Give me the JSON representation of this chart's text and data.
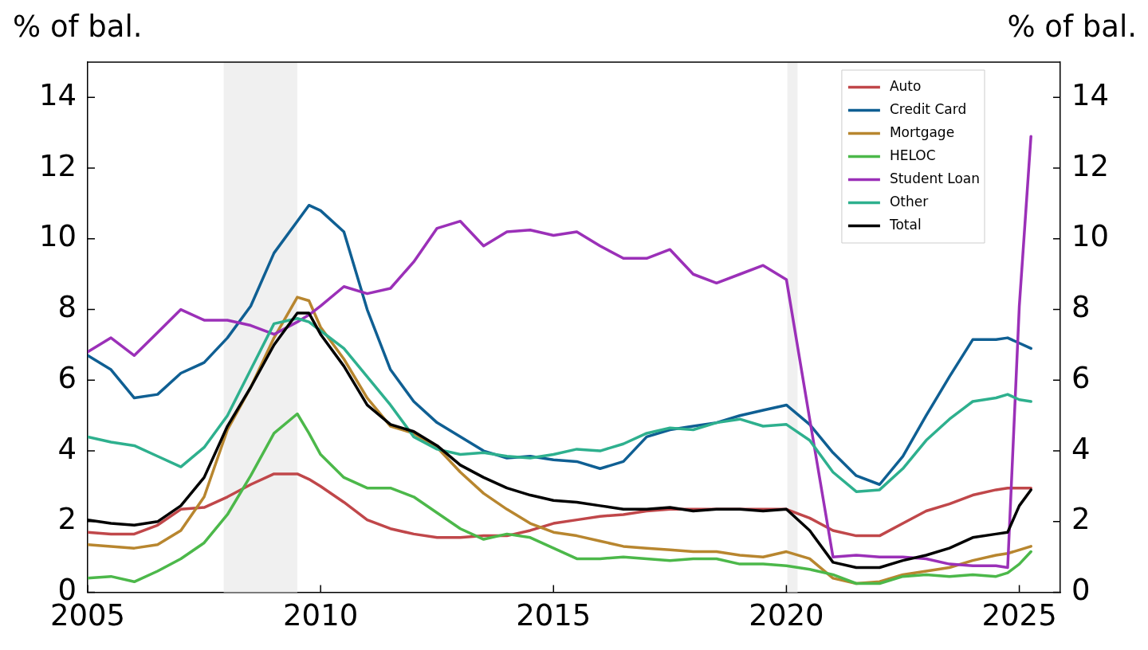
{
  "chart_data": {
    "type": "line",
    "ylabel": "% of bal.",
    "y2label": "% of bal.",
    "x": [
      2005,
      2005.5,
      2006,
      2006.5,
      2007,
      2007.5,
      2008,
      2008.5,
      2009,
      2009.5,
      2009.75,
      2010,
      2010.5,
      2011,
      2011.5,
      2012,
      2012.5,
      2013,
      2013.5,
      2014,
      2014.5,
      2015,
      2015.5,
      2016,
      2016.5,
      2017,
      2017.5,
      2018,
      2018.5,
      2019,
      2019.5,
      2020,
      2020.5,
      2021,
      2021.5,
      2022,
      2022.5,
      2023,
      2023.5,
      2024,
      2024.5,
      2024.75,
      2025,
      2025.25
    ],
    "series": [
      {
        "name": "Auto",
        "color": "#c0474a",
        "values": [
          1.7,
          1.65,
          1.65,
          1.9,
          2.35,
          2.4,
          2.7,
          3.05,
          3.35,
          3.35,
          3.2,
          3.0,
          2.55,
          2.05,
          1.8,
          1.65,
          1.55,
          1.55,
          1.6,
          1.6,
          1.75,
          1.95,
          2.05,
          2.15,
          2.2,
          2.3,
          2.35,
          2.35,
          2.35,
          2.35,
          2.35,
          2.35,
          2.1,
          1.75,
          1.6,
          1.6,
          1.95,
          2.3,
          2.5,
          2.75,
          2.9,
          2.95,
          2.95,
          2.95
        ]
      },
      {
        "name": "Credit Card",
        "color": "#0f5f93",
        "values": [
          6.7,
          6.3,
          5.5,
          5.6,
          6.2,
          6.5,
          7.2,
          8.1,
          9.6,
          10.5,
          10.95,
          10.8,
          10.2,
          8.0,
          6.3,
          5.4,
          4.8,
          4.4,
          4.0,
          3.8,
          3.85,
          3.75,
          3.7,
          3.5,
          3.7,
          4.4,
          4.6,
          4.7,
          4.8,
          5.0,
          5.15,
          5.3,
          4.75,
          3.95,
          3.3,
          3.05,
          3.85,
          5.0,
          6.1,
          7.15,
          7.15,
          7.2,
          7.05,
          6.9
        ]
      },
      {
        "name": "Mortgage",
        "color": "#b8862f",
        "values": [
          1.35,
          1.3,
          1.25,
          1.35,
          1.75,
          2.7,
          4.6,
          5.8,
          7.2,
          8.35,
          8.25,
          7.5,
          6.6,
          5.5,
          4.7,
          4.5,
          4.1,
          3.4,
          2.8,
          2.35,
          1.95,
          1.7,
          1.6,
          1.45,
          1.3,
          1.25,
          1.2,
          1.15,
          1.15,
          1.05,
          1.0,
          1.15,
          0.95,
          0.4,
          0.25,
          0.3,
          0.5,
          0.6,
          0.7,
          0.9,
          1.05,
          1.1,
          1.2,
          1.3
        ]
      },
      {
        "name": "HELOC",
        "color": "#4cb84a",
        "values": [
          0.4,
          0.45,
          0.3,
          0.6,
          0.95,
          1.4,
          2.2,
          3.3,
          4.5,
          5.05,
          4.5,
          3.9,
          3.25,
          2.95,
          2.95,
          2.7,
          2.25,
          1.8,
          1.5,
          1.65,
          1.55,
          1.25,
          0.95,
          0.95,
          1.0,
          0.95,
          0.9,
          0.95,
          0.95,
          0.8,
          0.8,
          0.75,
          0.65,
          0.5,
          0.25,
          0.25,
          0.45,
          0.5,
          0.45,
          0.5,
          0.45,
          0.55,
          0.8,
          1.15
        ]
      },
      {
        "name": "Student Loan",
        "color": "#9b30b8",
        "values": [
          6.8,
          7.2,
          6.7,
          7.35,
          8.0,
          7.7,
          7.7,
          7.55,
          7.3,
          7.65,
          7.85,
          8.1,
          8.65,
          8.45,
          8.6,
          9.35,
          10.3,
          10.5,
          9.8,
          10.2,
          10.25,
          10.1,
          10.2,
          9.8,
          9.45,
          9.45,
          9.7,
          9.0,
          8.75,
          9.0,
          9.25,
          8.85,
          4.9,
          1.0,
          1.05,
          1.0,
          1.0,
          0.95,
          0.8,
          0.75,
          0.75,
          0.7,
          8.1,
          12.9
        ]
      },
      {
        "name": "Other",
        "color": "#2eb08e",
        "values": [
          4.4,
          4.25,
          4.15,
          3.85,
          3.55,
          4.1,
          5.0,
          6.3,
          7.6,
          7.75,
          7.65,
          7.4,
          6.9,
          6.1,
          5.3,
          4.4,
          4.05,
          3.9,
          3.95,
          3.85,
          3.8,
          3.9,
          4.05,
          4.0,
          4.2,
          4.5,
          4.65,
          4.6,
          4.8,
          4.9,
          4.7,
          4.75,
          4.3,
          3.4,
          2.85,
          2.9,
          3.5,
          4.3,
          4.9,
          5.4,
          5.5,
          5.6,
          5.45,
          5.4
        ]
      },
      {
        "name": "Total",
        "color": "#000000",
        "values": [
          2.05,
          1.95,
          1.9,
          2.0,
          2.45,
          3.25,
          4.7,
          5.8,
          7.0,
          7.9,
          7.9,
          7.3,
          6.4,
          5.3,
          4.75,
          4.55,
          4.15,
          3.6,
          3.25,
          2.95,
          2.75,
          2.6,
          2.55,
          2.45,
          2.35,
          2.35,
          2.4,
          2.3,
          2.35,
          2.35,
          2.3,
          2.35,
          1.75,
          0.85,
          0.7,
          0.7,
          0.9,
          1.05,
          1.25,
          1.55,
          1.65,
          1.7,
          2.45,
          2.9
        ]
      }
    ],
    "xlim": [
      2005,
      2025.88
    ],
    "xticks": [
      2005,
      2010,
      2015,
      2020,
      2025
    ],
    "ylim": [
      0,
      15
    ],
    "yticks": [
      0,
      2,
      4,
      6,
      8,
      10,
      12,
      14
    ],
    "y2lim": [
      0,
      15
    ],
    "y2ticks": [
      0,
      2,
      4,
      6,
      8,
      10,
      12,
      14
    ],
    "bands": [
      {
        "axis": "x",
        "from": 2007.92,
        "to": 2009.5,
        "color": "#f0f0f0"
      },
      {
        "axis": "x",
        "from": 2020.02,
        "to": 2020.24,
        "color": "#f0f0f0"
      }
    ],
    "grid": false,
    "legend": "top right",
    "line_style": "solid",
    "marker": "none"
  }
}
